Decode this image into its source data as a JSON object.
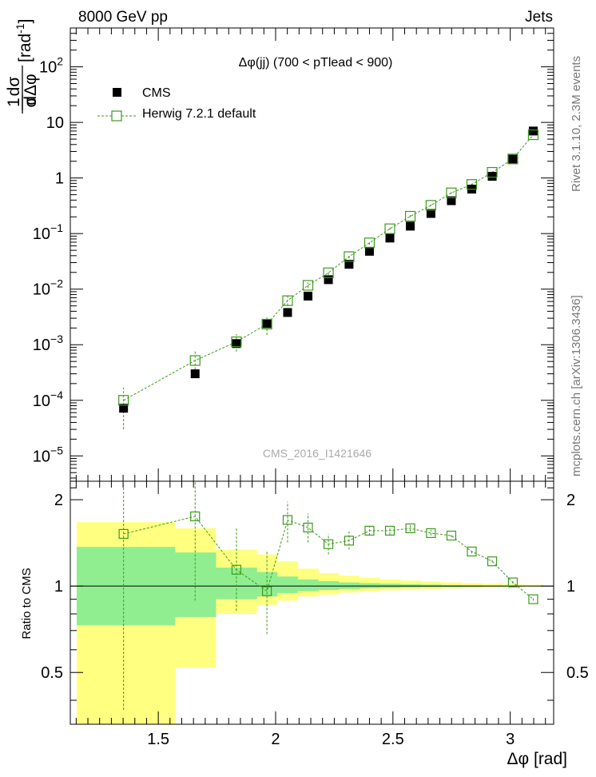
{
  "header": {
    "left": "8000 GeV pp",
    "right": "Jets"
  },
  "side_labels": {
    "rivet": "Rivet 3.1.10,  2.3M events",
    "mcplots": "mcplots.cern.ch [arXiv:1306.3436]"
  },
  "watermark": "CMS_2016_I1421646",
  "chart_data": [
    {
      "type": "scatter",
      "panel": "main",
      "title": "Δφ(jj) (700 < pTlead <  900)",
      "ylabel_parts": {
        "frac_num": "1",
        "frac_den": "σ",
        "d_num": "dσ",
        "d_den": "dΔφ",
        "unit": "[rad",
        "unit_exp": "-1",
        "unit_close": "]"
      },
      "yscale": "log",
      "ylim": [
        3.5e-06,
        500
      ],
      "xlim": [
        1.125,
        3.185
      ],
      "y_ticks": [
        {
          "value": 1e-05,
          "base": "10",
          "exp": "−5"
        },
        {
          "value": 0.0001,
          "base": "10",
          "exp": "−4"
        },
        {
          "value": 0.001,
          "base": "10",
          "exp": "−3"
        },
        {
          "value": 0.01,
          "base": "10",
          "exp": "−2"
        },
        {
          "value": 0.1,
          "base": "10",
          "exp": "−1"
        },
        {
          "value": 1,
          "base": "1",
          "exp": ""
        },
        {
          "value": 10,
          "base": "10",
          "exp": ""
        },
        {
          "value": 100,
          "base": "10",
          "exp": "2"
        }
      ],
      "legend": {
        "position": "top-left",
        "entries": [
          "CMS",
          "Herwig 7.2.1 default"
        ]
      },
      "series": [
        {
          "name": "CMS",
          "color": "#000000",
          "marker": "filled-square",
          "x": [
            1.352,
            1.657,
            1.833,
            1.963,
            2.051,
            2.138,
            2.225,
            2.313,
            2.4,
            2.487,
            2.574,
            2.662,
            2.749,
            2.836,
            2.923,
            3.011,
            3.098
          ],
          "y": [
            7.2e-05,
            0.0003,
            0.00105,
            0.0024,
            0.0038,
            0.0075,
            0.0148,
            0.028,
            0.048,
            0.083,
            0.136,
            0.23,
            0.39,
            0.63,
            1.07,
            2.18,
            7.0
          ]
        },
        {
          "name": "Herwig 7.2.1 default",
          "color": "#3d9a1d",
          "marker": "open-square",
          "line": "dashed",
          "x": [
            1.352,
            1.657,
            1.833,
            1.963,
            2.051,
            2.138,
            2.225,
            2.313,
            2.4,
            2.487,
            2.574,
            2.662,
            2.749,
            2.836,
            2.923,
            3.011,
            3.098
          ],
          "y": [
            0.0001,
            0.00052,
            0.00113,
            0.00235,
            0.0062,
            0.0117,
            0.0197,
            0.0385,
            0.068,
            0.122,
            0.205,
            0.322,
            0.54,
            0.765,
            1.265,
            2.2,
            6.0
          ],
          "y_low": [
            3e-05,
            0.0003,
            0.00075,
            0.0015,
            0.005,
            0.0105,
            0.018,
            0.036,
            0.063,
            0.116,
            0.197,
            0.31,
            0.52,
            0.74,
            1.23,
            2.15,
            5.9
          ],
          "y_high": [
            0.00017,
            0.00076,
            0.00155,
            0.0031,
            0.0075,
            0.0132,
            0.0215,
            0.041,
            0.073,
            0.129,
            0.214,
            0.334,
            0.56,
            0.79,
            1.3,
            2.25,
            6.1
          ]
        }
      ]
    },
    {
      "type": "scatter",
      "panel": "ratio",
      "ylabel": "Ratio to CMS",
      "ylim": [
        0.33,
        2.32
      ],
      "xlim": [
        1.125,
        3.185
      ],
      "x_ticks": [
        "1.5",
        "2",
        "2.5",
        "3"
      ],
      "x_tick_values": [
        1.5,
        2,
        2.5,
        3
      ],
      "y_ticks": [
        "0.5",
        "1",
        "2"
      ],
      "y_tick_values": [
        0.5,
        1,
        2
      ],
      "xlabel": "Δφ [rad]",
      "reference_line": 1,
      "bands": {
        "edges": [
          1.152,
          1.571,
          1.745,
          1.92,
          2.007,
          2.094,
          2.182,
          2.269,
          2.356,
          2.443,
          2.531,
          2.618,
          2.705,
          2.793,
          2.88,
          2.967,
          3.054,
          3.142
        ],
        "yellow_color": "#ffff80",
        "green_color": "#90ee90",
        "yellow_low": [
          0.33,
          0.52,
          0.8,
          0.86,
          0.89,
          0.92,
          0.935,
          0.95,
          0.96,
          0.967,
          0.973,
          0.977,
          0.981,
          0.985,
          0.988,
          0.991,
          0.994
        ],
        "yellow_high": [
          1.67,
          1.59,
          1.34,
          1.29,
          1.22,
          1.15,
          1.11,
          1.087,
          1.07,
          1.055,
          1.045,
          1.037,
          1.03,
          1.024,
          1.019,
          1.015,
          1.01
        ],
        "green_low": [
          0.73,
          0.78,
          0.9,
          0.92,
          0.945,
          0.96,
          0.97,
          0.977,
          0.982,
          0.986,
          0.989,
          0.991,
          0.993,
          0.995,
          0.996,
          0.997,
          0.998
        ],
        "green_high": [
          1.37,
          1.31,
          1.16,
          1.12,
          1.08,
          1.055,
          1.04,
          1.03,
          1.024,
          1.019,
          1.015,
          1.012,
          1.009,
          1.007,
          1.005,
          1.004,
          1.003
        ]
      },
      "series": [
        {
          "name": "Herwig 7.2.1 default",
          "color": "#3d9a1d",
          "marker": "open-square",
          "line": "dashed",
          "x": [
            1.352,
            1.657,
            1.833,
            1.963,
            2.051,
            2.138,
            2.225,
            2.313,
            2.4,
            2.487,
            2.574,
            2.662,
            2.749,
            2.836,
            2.923,
            3.011,
            3.098
          ],
          "y": [
            1.52,
            1.75,
            1.14,
            0.96,
            1.7,
            1.6,
            1.4,
            1.44,
            1.56,
            1.56,
            1.59,
            1.53,
            1.5,
            1.32,
            1.22,
            1.03,
            0.9
          ],
          "y_low": [
            0.37,
            0.89,
            0.82,
            0.68,
            1.42,
            1.42,
            1.29,
            1.34,
            1.5,
            1.51,
            1.55,
            1.5,
            1.48,
            1.3,
            1.21,
            1.02,
            0.89
          ],
          "y_high": [
            2.32,
            2.32,
            1.59,
            1.32,
            1.97,
            1.79,
            1.52,
            1.55,
            1.62,
            1.61,
            1.64,
            1.57,
            1.53,
            1.34,
            1.24,
            1.04,
            0.91
          ]
        }
      ]
    }
  ]
}
